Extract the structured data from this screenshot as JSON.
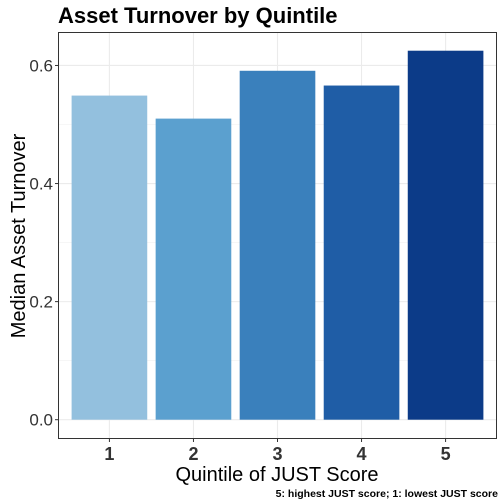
{
  "chart_data": {
    "type": "bar",
    "title": "Asset Turnover by Quintile",
    "xlabel": "Quintile of JUST Score",
    "ylabel": "Median Asset Turnover",
    "caption": "5: highest JUST score; 1: lowest JUST score",
    "categories": [
      "1",
      "2",
      "3",
      "4",
      "5"
    ],
    "values": [
      0.549,
      0.51,
      0.591,
      0.566,
      0.625
    ],
    "colors": [
      "#93C0DE",
      "#5BA0CF",
      "#3A80BC",
      "#1F5DA6",
      "#0C3B88"
    ],
    "ylim": [
      -0.031,
      0.655
    ],
    "yticks": [
      0.0,
      0.2,
      0.4,
      0.6
    ],
    "ytick_labels": [
      "0.0",
      "0.2",
      "0.4",
      "0.6"
    ],
    "grid": true,
    "legend": "none"
  }
}
